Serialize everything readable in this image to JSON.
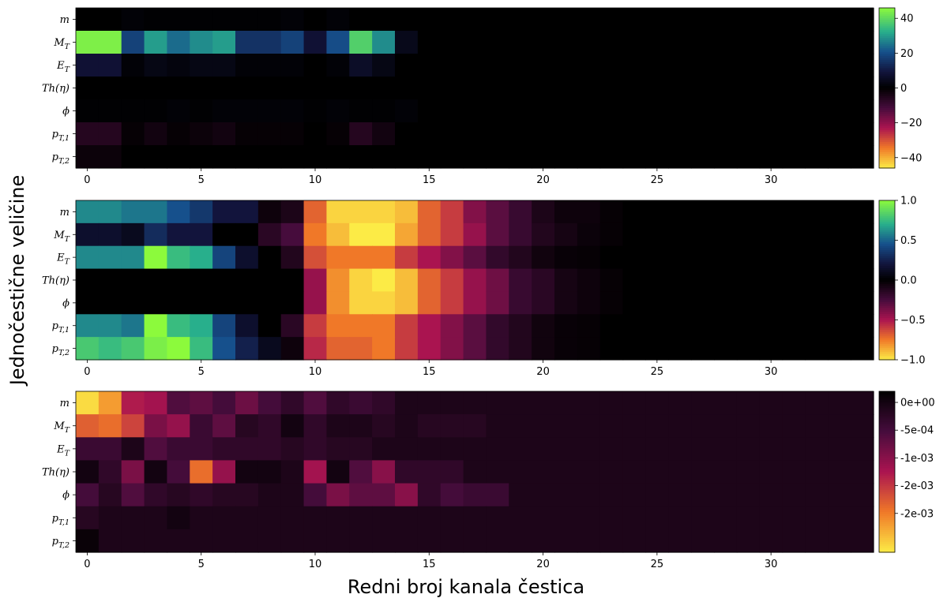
{
  "figure": {
    "xlabel": "Redni broj kanala čestica",
    "ylabel": "Jednočestične veličine"
  },
  "chart_data": [
    {
      "type": "heatmap",
      "panel": "top",
      "rows": [
        {
          "base": "m",
          "sub": ""
        },
        {
          "base": "M",
          "sub": "T"
        },
        {
          "base": "E",
          "sub": "T"
        },
        {
          "base": "Th(η)",
          "sub": ""
        },
        {
          "base": "ϕ",
          "sub": ""
        },
        {
          "base": "p",
          "sub": "T,1"
        },
        {
          "base": "p",
          "sub": "T,2"
        }
      ],
      "x_ticks": [
        "0",
        "5",
        "10",
        "15",
        "20",
        "25",
        "30"
      ],
      "n_channels": 35,
      "colormap": "positive: black→blue→teal→green; negative: black→magenta→red→orange→yellow",
      "colorbar": {
        "min": -46,
        "max": 46,
        "ticks": [
          40,
          20,
          0,
          -20,
          -40
        ],
        "tick_labels": [
          "40",
          "20",
          "0",
          "−20",
          "−40"
        ]
      },
      "values": [
        [
          0,
          0,
          1,
          0.5,
          0.5,
          0.5,
          0.5,
          0.5,
          0.5,
          1,
          0,
          1,
          0,
          0,
          0,
          0,
          0,
          0,
          0,
          0,
          0,
          0,
          0,
          0,
          0,
          0,
          0,
          0,
          0,
          0,
          0,
          0,
          0,
          0,
          0
        ],
        [
          44,
          44,
          18,
          30,
          24,
          28,
          30,
          15,
          15,
          18,
          8,
          20,
          38,
          28,
          4,
          0,
          0,
          0,
          0,
          0,
          0,
          0,
          0,
          0,
          0,
          0,
          0,
          0,
          0,
          0,
          0,
          0,
          0,
          0,
          0
        ],
        [
          8,
          8,
          1,
          3,
          2,
          3,
          3,
          1,
          1,
          1,
          0,
          1,
          6,
          3,
          0,
          0,
          0,
          0,
          0,
          0,
          0,
          0,
          0,
          0,
          0,
          0,
          0,
          0,
          0,
          0,
          0,
          0,
          0,
          0,
          0
        ],
        [
          0,
          0,
          0,
          0,
          0,
          0,
          0,
          0,
          0,
          0,
          0,
          0,
          0,
          0,
          0,
          0,
          0,
          0,
          0,
          0,
          0,
          0,
          0,
          0,
          0,
          0,
          0,
          0,
          0,
          0,
          0,
          0,
          0,
          0,
          0
        ],
        [
          0.5,
          0.5,
          0.5,
          0.5,
          1,
          0.5,
          1,
          1,
          1,
          1,
          0.5,
          1,
          0.5,
          0.5,
          1,
          0,
          0,
          0,
          0,
          0,
          0,
          0,
          0,
          0,
          0,
          0,
          0,
          0,
          0,
          0,
          0,
          0,
          0,
          0,
          0
        ],
        [
          -6,
          -6,
          -1,
          -3,
          -1,
          -2,
          -3,
          -1,
          -1,
          -1,
          0,
          -1,
          -6,
          -3,
          0,
          0,
          0,
          0,
          0,
          0,
          0,
          0,
          0,
          0,
          0,
          0,
          0,
          0,
          0,
          0,
          0,
          0,
          0,
          0,
          0
        ],
        [
          -2,
          -2,
          0,
          0,
          0,
          0,
          0,
          0,
          0,
          0,
          0,
          0,
          0,
          0,
          0,
          0,
          0,
          0,
          0,
          0,
          0,
          0,
          0,
          0,
          0,
          0,
          0,
          0,
          0,
          0,
          0,
          0,
          0,
          0,
          0
        ]
      ]
    },
    {
      "type": "heatmap",
      "panel": "middle",
      "rows": [
        {
          "base": "m",
          "sub": ""
        },
        {
          "base": "M",
          "sub": "T"
        },
        {
          "base": "E",
          "sub": "T"
        },
        {
          "base": "Th(η)",
          "sub": ""
        },
        {
          "base": "ϕ",
          "sub": ""
        },
        {
          "base": "p",
          "sub": "T,1"
        },
        {
          "base": "p",
          "sub": "T,2"
        }
      ],
      "x_ticks": [
        "0",
        "5",
        "10",
        "15",
        "20",
        "25",
        "30"
      ],
      "n_channels": 35,
      "colormap": "positive: black→blue→teal→green; negative: black→magenta→red→orange→yellow",
      "colorbar": {
        "min": -1,
        "max": 1,
        "ticks": [
          1,
          0.5,
          0,
          -0.5,
          -1
        ],
        "tick_labels": [
          "1.0",
          "0.5",
          "0.0",
          "−0.5",
          "−1.0"
        ]
      },
      "values": [
        [
          0.6,
          0.6,
          0.55,
          0.55,
          0.45,
          0.35,
          0.2,
          0.2,
          -0.05,
          -0.1,
          -0.7,
          -0.95,
          -0.95,
          -0.95,
          -0.9,
          -0.7,
          -0.6,
          -0.4,
          -0.3,
          -0.2,
          -0.1,
          -0.05,
          -0.05,
          -0.02,
          0,
          0,
          0,
          0,
          0,
          0,
          0,
          0,
          0,
          0,
          0
        ],
        [
          0.15,
          0.15,
          0.1,
          0.3,
          0.2,
          0.2,
          0,
          0,
          -0.15,
          -0.25,
          -0.75,
          -0.9,
          -1,
          -1,
          -0.85,
          -0.7,
          -0.6,
          -0.45,
          -0.3,
          -0.2,
          -0.12,
          -0.08,
          -0.04,
          -0.02,
          0,
          0,
          0,
          0,
          0,
          0,
          0,
          0,
          0,
          0,
          0
        ],
        [
          0.6,
          0.6,
          0.6,
          1,
          0.75,
          0.7,
          0.4,
          0.15,
          0,
          -0.12,
          -0.65,
          -0.75,
          -0.75,
          -0.75,
          -0.6,
          -0.5,
          -0.4,
          -0.3,
          -0.18,
          -0.12,
          -0.06,
          -0.03,
          -0.02,
          0,
          0,
          0,
          0,
          0,
          0,
          0,
          0,
          0,
          0,
          0,
          0
        ],
        [
          0,
          0,
          0,
          0,
          0,
          0,
          0,
          0,
          0,
          0,
          -0.45,
          -0.8,
          -0.95,
          -1,
          -0.9,
          -0.7,
          -0.6,
          -0.45,
          -0.35,
          -0.2,
          -0.15,
          -0.08,
          -0.05,
          -0.02,
          0,
          0,
          0,
          0,
          0,
          0,
          0,
          0,
          0,
          0,
          0
        ],
        [
          0,
          0,
          0,
          0,
          0,
          0,
          0,
          0,
          0,
          0,
          -0.45,
          -0.8,
          -0.95,
          -0.95,
          -0.9,
          -0.7,
          -0.6,
          -0.45,
          -0.35,
          -0.2,
          -0.15,
          -0.08,
          -0.05,
          -0.02,
          0,
          0,
          0,
          0,
          0,
          0,
          0,
          0,
          0,
          0,
          0
        ],
        [
          0.6,
          0.6,
          0.55,
          1,
          0.75,
          0.7,
          0.4,
          0.15,
          0,
          -0.15,
          -0.6,
          -0.75,
          -0.75,
          -0.75,
          -0.6,
          -0.5,
          -0.4,
          -0.3,
          -0.18,
          -0.12,
          -0.06,
          -0.03,
          -0.02,
          0,
          0,
          0,
          0,
          0,
          0,
          0,
          0,
          0,
          0,
          0,
          0
        ],
        [
          0.8,
          0.75,
          0.8,
          0.95,
          1,
          0.75,
          0.45,
          0.25,
          0.1,
          -0.05,
          -0.55,
          -0.7,
          -0.7,
          -0.75,
          -0.6,
          -0.5,
          -0.4,
          -0.3,
          -0.18,
          -0.12,
          -0.06,
          -0.03,
          -0.02,
          0,
          0,
          0,
          0,
          0,
          0,
          0,
          0,
          0,
          0,
          0,
          0
        ]
      ]
    },
    {
      "type": "heatmap",
      "panel": "bottom",
      "rows": [
        {
          "base": "m",
          "sub": ""
        },
        {
          "base": "M",
          "sub": "T"
        },
        {
          "base": "E",
          "sub": "T"
        },
        {
          "base": "Th(η)",
          "sub": ""
        },
        {
          "base": "ϕ",
          "sub": ""
        },
        {
          "base": "p",
          "sub": "T,1"
        },
        {
          "base": "p",
          "sub": "T,2"
        }
      ],
      "x_ticks": [
        "0",
        "5",
        "10",
        "15",
        "20",
        "25",
        "30"
      ],
      "n_channels": 35,
      "colormap": "black (0) → purple → magenta → red → orange → yellow (most negative)",
      "colorbar": {
        "min": -0.0027,
        "max": 0.0002,
        "ticks": [
          0,
          -0.0005,
          -0.001,
          -0.0015,
          -0.002
        ],
        "tick_labels": [
          "0e+00",
          "-5e-04",
          "-1e-03",
          "-2e-03",
          "-2e-03"
        ]
      },
      "values": [
        [
          -0.0026,
          -0.0022,
          -0.0013,
          -0.0012,
          -0.0006,
          -0.0007,
          -0.0005,
          -0.0008,
          -0.0005,
          -0.0003,
          -0.0006,
          -0.0003,
          -0.0004,
          -0.0003,
          -0.0001,
          -0.0001,
          -0.0001,
          -0.0001,
          -0.0001,
          -0.0001,
          -0.0001,
          -0.0001,
          -0.0001,
          -0.0001,
          -0.0001,
          -0.0001,
          -0.0001,
          -0.0001,
          -0.0001,
          -0.0001,
          -0.0001,
          -0.0001,
          -0.0001,
          -0.0001,
          -0.0001
        ],
        [
          -0.0018,
          -0.0019,
          -0.0016,
          -0.0009,
          -0.0011,
          -0.0004,
          -0.0007,
          -0.0002,
          -0.0003,
          0,
          -0.0003,
          -0.0001,
          -0.0001,
          -0.0002,
          -0.0001,
          -0.0002,
          -0.0002,
          -0.0002,
          -0.0001,
          -0.0001,
          -0.0001,
          -0.0001,
          -0.0001,
          -0.0001,
          -0.0001,
          -0.0001,
          -0.0001,
          -0.0001,
          -0.0001,
          -0.0001,
          -0.0001,
          -0.0001,
          -0.0001,
          -0.0001,
          -0.0001
        ],
        [
          -0.0004,
          -0.0004,
          -0.0001,
          -0.0006,
          -0.0004,
          -0.0004,
          -0.0003,
          -0.0003,
          -0.0003,
          -0.0002,
          -0.0003,
          -0.0002,
          -0.0002,
          -0.0001,
          -0.0001,
          -0.0001,
          -0.0001,
          -0.0001,
          -0.0001,
          -0.0001,
          -0.0001,
          -0.0001,
          -0.0001,
          -0.0001,
          -0.0001,
          -0.0001,
          -0.0001,
          -0.0001,
          -0.0001,
          -0.0001,
          -0.0001,
          -0.0001,
          -0.0001,
          -0.0001,
          -0.0001
        ],
        [
          0,
          -0.0003,
          -0.0009,
          0,
          -0.0005,
          -0.0019,
          -0.0011,
          0,
          0,
          -0.0001,
          -0.0012,
          0,
          -0.0006,
          -0.001,
          -0.0003,
          -0.0003,
          -0.0003,
          -0.0001,
          -0.0001,
          -0.0001,
          -0.0001,
          -0.0001,
          -0.0001,
          -0.0001,
          -0.0001,
          -0.0001,
          -0.0001,
          -0.0001,
          -0.0001,
          -0.0001,
          -0.0001,
          -0.0001,
          -0.0001,
          -0.0001,
          -0.0001
        ],
        [
          -0.0005,
          -0.0002,
          -0.0006,
          -0.0003,
          -0.0002,
          -0.0003,
          -0.0002,
          -0.0002,
          -0.0001,
          -0.0001,
          -0.0005,
          -0.0009,
          -0.0007,
          -0.0007,
          -0.001,
          -0.0003,
          -0.0005,
          -0.0004,
          -0.0004,
          -0.0001,
          -0.0001,
          -0.0001,
          -0.0001,
          -0.0001,
          -0.0001,
          -0.0001,
          -0.0001,
          -0.0001,
          -0.0001,
          -0.0001,
          -0.0001,
          -0.0001,
          -0.0001,
          -0.0001,
          -0.0001
        ],
        [
          -0.0002,
          -0.0001,
          -0.0001,
          -0.0001,
          0,
          -0.0001,
          -0.0001,
          -0.0001,
          -0.0001,
          -0.0001,
          -0.0001,
          -0.0001,
          -0.0001,
          -0.0001,
          -0.0001,
          -0.0001,
          -0.0001,
          -0.0001,
          -0.0001,
          -0.0001,
          -0.0001,
          -0.0001,
          -0.0001,
          -0.0001,
          -0.0001,
          -0.0001,
          -0.0001,
          -0.0001,
          -0.0001,
          -0.0001,
          -0.0001,
          -0.0001,
          -0.0001,
          -0.0001,
          -0.0001
        ],
        [
          0.0001,
          -0.0001,
          -0.0001,
          -0.0001,
          -0.0001,
          -0.0001,
          -0.0001,
          -0.0001,
          -0.0001,
          -0.0001,
          -0.0001,
          -0.0001,
          -0.0001,
          -0.0001,
          -0.0001,
          -0.0001,
          -0.0001,
          -0.0001,
          -0.0001,
          -0.0001,
          -0.0001,
          -0.0001,
          -0.0001,
          -0.0001,
          -0.0001,
          -0.0001,
          -0.0001,
          -0.0001,
          -0.0001,
          -0.0001,
          -0.0001,
          -0.0001,
          -0.0001,
          -0.0001,
          -0.0001
        ]
      ]
    }
  ]
}
